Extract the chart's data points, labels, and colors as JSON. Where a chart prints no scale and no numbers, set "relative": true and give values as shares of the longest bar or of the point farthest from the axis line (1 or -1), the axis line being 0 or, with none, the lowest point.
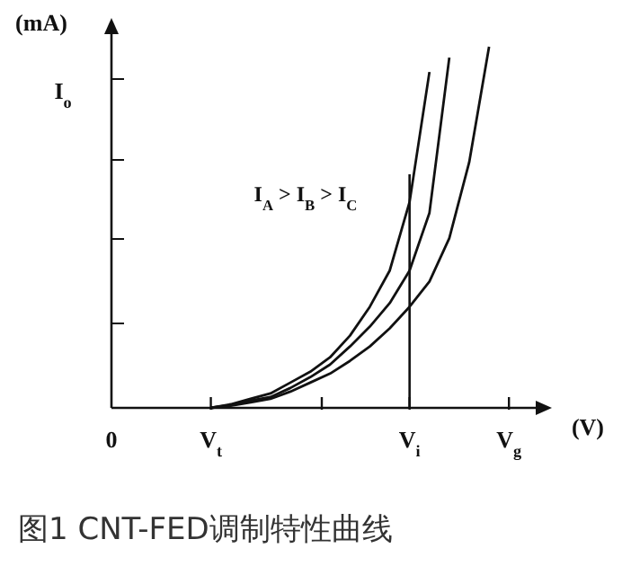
{
  "chart_data": {
    "type": "line",
    "title": "图1  CNT-FED调制特性曲线",
    "xlabel": "(V)",
    "ylabel": "(mA)",
    "categories": [
      "0",
      null,
      null,
      null,
      null,
      "V$_{t}$",
      null,
      null,
      null,
      null,
      null,
      null,
      null,
      null,
      null,
      "V$_{i}$",
      null,
      null,
      null,
      null,
      "V$_{g}$",
      null
    ],
    "relative": true,
    "marker": "none",
    "line_style": "solid",
    "annotations": [
      "I$_{A}$ > I$_{B}$ > I$_{C}$",
      "I$_{o}$"
    ],
    "ref_lines": [
      {
        "axis": "x",
        "value": "V$_{i}$",
        "color": "#111111"
      }
    ],
    "series": [
      {
        "color": "#111111",
        "values": [
          null,
          null,
          null,
          null,
          null,
          0,
          0.01,
          0.025,
          0.04,
          0.07,
          0.1,
          0.14,
          0.2,
          0.28,
          0.38,
          0.57,
          0.93,
          null,
          null,
          null,
          null,
          null
        ]
      },
      {
        "color": "#111111",
        "values": [
          null,
          null,
          null,
          null,
          null,
          0,
          0.008,
          0.02,
          0.03,
          0.055,
          0.085,
          0.12,
          0.17,
          0.225,
          0.29,
          0.38,
          0.54,
          0.97,
          null,
          null,
          null,
          null
        ]
      },
      {
        "color": "#111111",
        "values": [
          null,
          null,
          null,
          null,
          null,
          0,
          0.006,
          0.015,
          0.025,
          0.045,
          0.07,
          0.095,
          0.13,
          0.17,
          0.22,
          0.28,
          0.35,
          0.47,
          0.68,
          1.0,
          null,
          null
        ]
      }
    ]
  }
}
